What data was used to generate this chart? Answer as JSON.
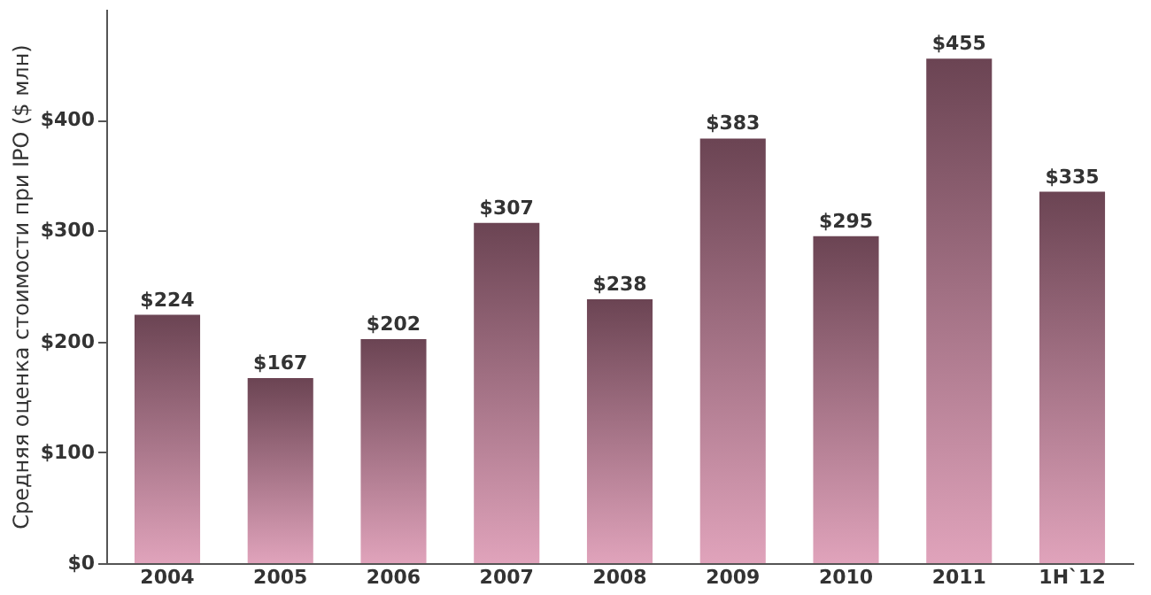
{
  "chart_data": {
    "type": "bar",
    "ylabel": "Средняя оценка стоимости при IPO ($ млн)",
    "categories": [
      "2004",
      "2005",
      "2006",
      "2007",
      "2008",
      "2009",
      "2010",
      "2011",
      "1H`12"
    ],
    "values": [
      224,
      167,
      202,
      307,
      238,
      383,
      295,
      455,
      335
    ],
    "value_labels": [
      "$224",
      "$167",
      "$202",
      "$307",
      "$238",
      "$383",
      "$295",
      "$455",
      "$335"
    ],
    "color": "#6b4453",
    "ylim": [
      0,
      500
    ],
    "yticks": [
      {
        "value": 0,
        "label": "$0"
      },
      {
        "value": 100,
        "label": "$100"
      },
      {
        "value": 200,
        "label": "$200"
      },
      {
        "value": 300,
        "label": "$300"
      },
      {
        "value": 400,
        "label": "$400"
      }
    ],
    "grid": false
  }
}
